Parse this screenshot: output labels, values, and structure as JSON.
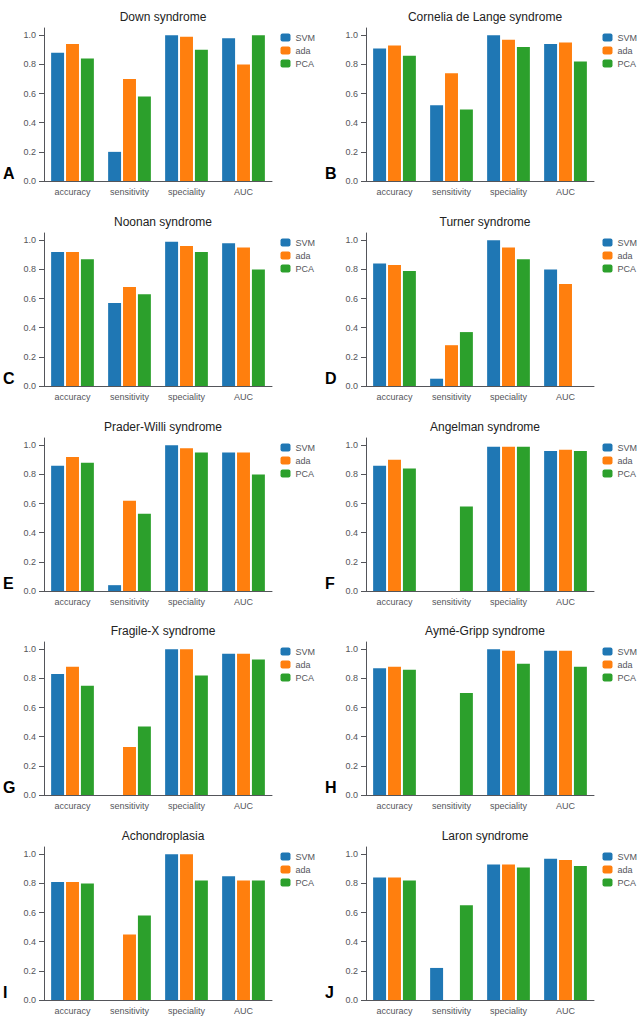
{
  "chart_data": [
    {
      "type": "bar",
      "title": "Down syndrome",
      "annotation": "A",
      "categories": [
        "accuracy",
        "sensitivity",
        "speciality",
        "AUC"
      ],
      "series": [
        {
          "name": "SVM",
          "color": "#1f77b4",
          "values": [
            0.88,
            0.2,
            1.0,
            0.98
          ]
        },
        {
          "name": "ada",
          "color": "#ff7f0e",
          "values": [
            0.94,
            0.7,
            0.99,
            0.8
          ]
        },
        {
          "name": "PCA",
          "color": "#2ca02c",
          "values": [
            0.84,
            0.58,
            0.9,
            1.0
          ]
        }
      ],
      "ylim": [
        0.0,
        1.05
      ],
      "yticks": [
        {
          "value": 0,
          "label": "0.0"
        },
        0.2,
        0.4,
        0.6,
        0.8,
        {
          "value": 1,
          "label": "1.0"
        }
      ],
      "grid": false,
      "legend": "upper right"
    },
    {
      "type": "bar",
      "title": "Cornelia de Lange syndrome",
      "annotation": "B",
      "categories": [
        "accuracy",
        "sensitivity",
        "speciality",
        "AUC"
      ],
      "series": [
        {
          "name": "SVM",
          "color": "#1f77b4",
          "values": [
            0.91,
            0.52,
            1.0,
            0.94
          ]
        },
        {
          "name": "ada",
          "color": "#ff7f0e",
          "values": [
            0.93,
            0.74,
            0.97,
            0.95
          ]
        },
        {
          "name": "PCA",
          "color": "#2ca02c",
          "values": [
            0.86,
            0.49,
            0.92,
            0.82
          ]
        }
      ],
      "ylim": [
        0.0,
        1.05
      ],
      "yticks": [
        {
          "value": 0,
          "label": "0.0"
        },
        0.2,
        0.4,
        0.6,
        0.8,
        {
          "value": 1,
          "label": "1.0"
        }
      ],
      "grid": false,
      "legend": "upper right"
    },
    {
      "type": "bar",
      "title": "Noonan syndrome",
      "annotation": "C",
      "categories": [
        "accuracy",
        "sensitivity",
        "speciality",
        "AUC"
      ],
      "series": [
        {
          "name": "SVM",
          "color": "#1f77b4",
          "values": [
            0.92,
            0.57,
            0.99,
            0.98
          ]
        },
        {
          "name": "ada",
          "color": "#ff7f0e",
          "values": [
            0.92,
            0.68,
            0.96,
            0.95
          ]
        },
        {
          "name": "PCA",
          "color": "#2ca02c",
          "values": [
            0.87,
            0.63,
            0.92,
            0.8
          ]
        }
      ],
      "ylim": [
        0.0,
        1.05
      ],
      "yticks": [
        {
          "value": 0,
          "label": "0.0"
        },
        0.2,
        0.4,
        0.6,
        0.8,
        {
          "value": 1,
          "label": "1.0"
        }
      ],
      "grid": false,
      "legend": "upper right"
    },
    {
      "type": "bar",
      "title": "Turner syndrome",
      "annotation": "D",
      "categories": [
        "accuracy",
        "sensitivity",
        "speciality",
        "AUC"
      ],
      "series": [
        {
          "name": "SVM",
          "color": "#1f77b4",
          "values": [
            0.84,
            0.05,
            1.0,
            0.8
          ]
        },
        {
          "name": "ada",
          "color": "#ff7f0e",
          "values": [
            0.83,
            0.28,
            0.95,
            0.7
          ]
        },
        {
          "name": "PCA",
          "color": "#2ca02c",
          "values": [
            0.79,
            0.37,
            0.87,
            0.0
          ]
        }
      ],
      "ylim": [
        0.0,
        1.05
      ],
      "yticks": [
        {
          "value": 0,
          "label": "0.0"
        },
        0.2,
        0.4,
        0.6,
        0.8,
        {
          "value": 1,
          "label": "1.0"
        }
      ],
      "grid": false,
      "legend": "upper right"
    },
    {
      "type": "bar",
      "title": "Prader-Willi syndrome",
      "annotation": "E",
      "categories": [
        "accuracy",
        "sensitivity",
        "speciality",
        "AUC"
      ],
      "series": [
        {
          "name": "SVM",
          "color": "#1f77b4",
          "values": [
            0.86,
            0.04,
            1.0,
            0.95
          ]
        },
        {
          "name": "ada",
          "color": "#ff7f0e",
          "values": [
            0.92,
            0.62,
            0.98,
            0.95
          ]
        },
        {
          "name": "PCA",
          "color": "#2ca02c",
          "values": [
            0.88,
            0.53,
            0.95,
            0.8
          ]
        }
      ],
      "ylim": [
        0.0,
        1.05
      ],
      "yticks": [
        {
          "value": 0,
          "label": "0.0"
        },
        0.2,
        0.4,
        0.6,
        0.8,
        {
          "value": 1,
          "label": "1.0"
        }
      ],
      "grid": false,
      "legend": "upper right"
    },
    {
      "type": "bar",
      "title": "Angelman syndrome",
      "annotation": "F",
      "categories": [
        "accuracy",
        "sensitivity",
        "speciality",
        "AUC"
      ],
      "series": [
        {
          "name": "SVM",
          "color": "#1f77b4",
          "values": [
            0.86,
            0.0,
            0.99,
            0.96
          ]
        },
        {
          "name": "ada",
          "color": "#ff7f0e",
          "values": [
            0.9,
            0.0,
            0.99,
            0.97
          ]
        },
        {
          "name": "PCA",
          "color": "#2ca02c",
          "values": [
            0.84,
            0.58,
            0.99,
            0.96
          ]
        }
      ],
      "ylim": [
        0.0,
        1.05
      ],
      "yticks": [
        {
          "value": 0,
          "label": "0.0"
        },
        0.2,
        0.4,
        0.6,
        0.8,
        {
          "value": 1,
          "label": "1.0"
        }
      ],
      "grid": false,
      "legend": "upper right"
    },
    {
      "type": "bar",
      "title": "Fragile-X syndrome",
      "annotation": "G",
      "categories": [
        "accuracy",
        "sensitivity",
        "speciality",
        "AUC"
      ],
      "series": [
        {
          "name": "SVM",
          "color": "#1f77b4",
          "values": [
            0.83,
            0.0,
            1.0,
            0.97
          ]
        },
        {
          "name": "ada",
          "color": "#ff7f0e",
          "values": [
            0.88,
            0.33,
            1.0,
            0.97
          ]
        },
        {
          "name": "PCA",
          "color": "#2ca02c",
          "values": [
            0.75,
            0.47,
            0.82,
            0.93
          ]
        }
      ],
      "ylim": [
        0.0,
        1.05
      ],
      "yticks": [
        {
          "value": 0,
          "label": "0.0"
        },
        0.2,
        0.4,
        0.6,
        0.8,
        {
          "value": 1,
          "label": "1.0"
        }
      ],
      "grid": false,
      "legend": "upper right"
    },
    {
      "type": "bar",
      "title": "Aymé-Gripp syndrome",
      "annotation": "H",
      "categories": [
        "accuracy",
        "sensitivity",
        "speciality",
        "AUC"
      ],
      "series": [
        {
          "name": "SVM",
          "color": "#1f77b4",
          "values": [
            0.87,
            0.0,
            1.0,
            0.99
          ]
        },
        {
          "name": "ada",
          "color": "#ff7f0e",
          "values": [
            0.88,
            0.0,
            0.99,
            0.99
          ]
        },
        {
          "name": "PCA",
          "color": "#2ca02c",
          "values": [
            0.86,
            0.7,
            0.9,
            0.88
          ]
        }
      ],
      "ylim": [
        0.0,
        1.05
      ],
      "yticks": [
        {
          "value": 0,
          "label": "0.0"
        },
        0.2,
        0.4,
        0.6,
        0.8,
        {
          "value": 1,
          "label": "1.0"
        }
      ],
      "grid": false,
      "legend": "upper right"
    },
    {
      "type": "bar",
      "title": "Achondroplasia",
      "annotation": "I",
      "categories": [
        "accuracy",
        "sensitivity",
        "speciality",
        "AUC"
      ],
      "series": [
        {
          "name": "SVM",
          "color": "#1f77b4",
          "values": [
            0.81,
            0.0,
            1.0,
            0.85
          ]
        },
        {
          "name": "ada",
          "color": "#ff7f0e",
          "values": [
            0.81,
            0.45,
            1.0,
            0.82
          ]
        },
        {
          "name": "PCA",
          "color": "#2ca02c",
          "values": [
            0.8,
            0.58,
            0.82,
            0.82
          ]
        }
      ],
      "ylim": [
        0.0,
        1.05
      ],
      "yticks": [
        {
          "value": 0,
          "label": "0.0"
        },
        0.2,
        0.4,
        0.6,
        0.8,
        {
          "value": 1,
          "label": "1.0"
        }
      ],
      "grid": false,
      "legend": "upper right"
    },
    {
      "type": "bar",
      "title": "Laron syndrome",
      "annotation": "J",
      "categories": [
        "accuracy",
        "sensitivity",
        "speciality",
        "AUC"
      ],
      "series": [
        {
          "name": "SVM",
          "color": "#1f77b4",
          "values": [
            0.84,
            0.22,
            0.93,
            0.97
          ]
        },
        {
          "name": "ada",
          "color": "#ff7f0e",
          "values": [
            0.84,
            0.0,
            0.93,
            0.96
          ]
        },
        {
          "name": "PCA",
          "color": "#2ca02c",
          "values": [
            0.82,
            0.65,
            0.91,
            0.92
          ]
        }
      ],
      "ylim": [
        0.0,
        1.05
      ],
      "yticks": [
        {
          "value": 0,
          "label": "0.0"
        },
        0.2,
        0.4,
        0.6,
        0.8,
        {
          "value": 1,
          "label": "1.0"
        }
      ],
      "grid": false,
      "legend": "upper right"
    }
  ]
}
